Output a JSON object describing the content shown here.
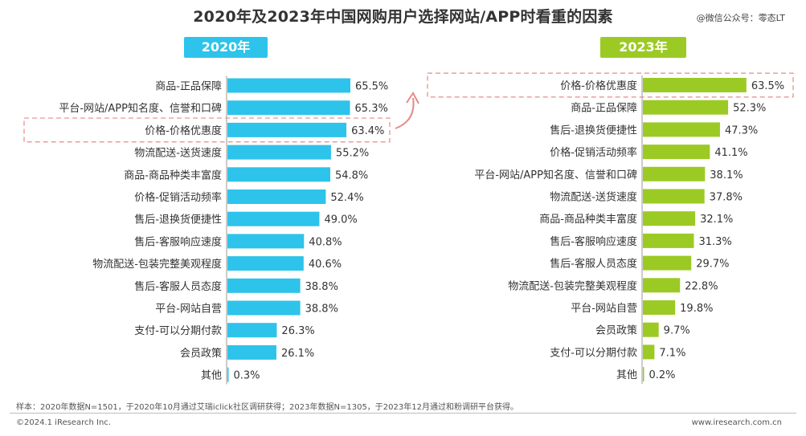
{
  "header": {
    "title": "2020年及2023年中国网购用户选择网站/APP时看重的因素",
    "watermark": "@微信公众号：零态LT"
  },
  "colors": {
    "bar_2020": "#2ec3ea",
    "bar_2023": "#9cca24",
    "badge_2020": "#2ec3ea",
    "badge_2023": "#9cca24",
    "highlight": "#e58a8a"
  },
  "chart_data": [
    {
      "type": "bar",
      "orientation": "horizontal",
      "title": "2020年",
      "highlight_category": "价格-价格优惠度",
      "categories": [
        "商品-正品保障",
        "平台-网站/APP知名度、信誉和口碑",
        "价格-价格优惠度",
        "物流配送-送货速度",
        "商品-商品种类丰富度",
        "价格-促销活动频率",
        "售后-退换货便捷性",
        "售后-客服响应速度",
        "物流配送-包装完整美观程度",
        "售后-客服人员态度",
        "平台-网站自营",
        "支付-可以分期付款",
        "会员政策",
        "其他"
      ],
      "values": [
        65.5,
        65.3,
        63.4,
        55.2,
        54.8,
        52.4,
        49.0,
        40.8,
        40.6,
        38.8,
        38.8,
        26.3,
        26.1,
        0.3
      ],
      "labels": [
        "65.5%",
        "65.3%",
        "63.4%",
        "55.2%",
        "54.8%",
        "52.4%",
        "49.0%",
        "40.8%",
        "40.6%",
        "38.8%",
        "38.8%",
        "26.3%",
        "26.1%",
        "0.3%"
      ],
      "xlim": [
        0,
        70
      ],
      "xlabel": "",
      "ylabel": ""
    },
    {
      "type": "bar",
      "orientation": "horizontal",
      "title": "2023年",
      "highlight_category": "价格-价格优惠度",
      "categories": [
        "价格-价格优惠度",
        "商品-正品保障",
        "售后-退换货便捷性",
        "价格-促销活动频率",
        "平台-网站/APP知名度、信誉和口碑",
        "物流配送-送货速度",
        "商品-商品种类丰富度",
        "售后-客服响应速度",
        "售后-客服人员态度",
        "物流配送-包装完整美观程度",
        "平台-网站自营",
        "会员政策",
        "支付-可以分期付款",
        "其他"
      ],
      "values": [
        63.5,
        52.3,
        47.3,
        41.1,
        38.1,
        37.8,
        32.1,
        31.3,
        29.7,
        22.8,
        19.8,
        9.7,
        7.1,
        0.2
      ],
      "labels": [
        "63.5%",
        "52.3%",
        "47.3%",
        "41.1%",
        "38.1%",
        "37.8%",
        "32.1%",
        "31.3%",
        "29.7%",
        "22.8%",
        "19.8%",
        "9.7%",
        "7.1%",
        "0.2%"
      ],
      "xlim": [
        0,
        70
      ],
      "xlabel": "",
      "ylabel": ""
    }
  ],
  "footer": {
    "footnote": "样本：2020年数据N=1501，于2020年10月通过艾瑞iclick社区调研获得；2023年数据N=1305，于2023年12月通过和粉调研平台获得。",
    "copyright": "©2024.1 iResearch Inc.",
    "website": "www.iresearch.com.cn"
  }
}
